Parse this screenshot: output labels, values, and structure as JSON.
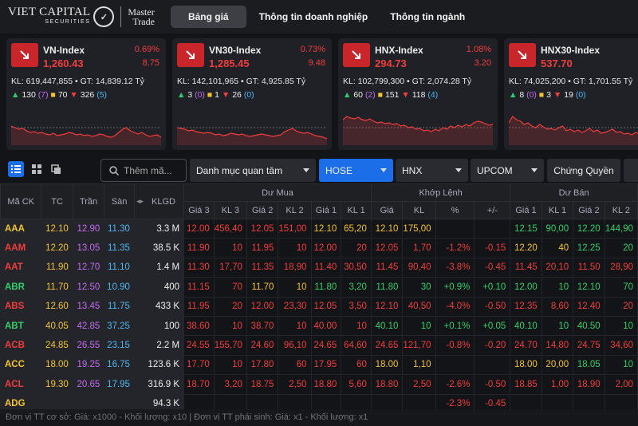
{
  "header": {
    "logo_main": "VIET CAPITAL",
    "logo_sub": "SECURITIES",
    "logo_line1": "Master",
    "logo_line2": "Trade",
    "tabs": [
      "Bảng giá",
      "Thông tin doanh nghiệp",
      "Thông tin ngành"
    ],
    "active_tab": 0
  },
  "indices": [
    {
      "name": "VN-Index",
      "value": "1,260.43",
      "pct": "0.69%",
      "chg": "8.75",
      "kl": "KL: 619,447,855 • GT: 14,839.12 Tỷ",
      "up": "130",
      "ceil": "(7)",
      "ref": "70",
      "down": "326",
      "floor": "(5)"
    },
    {
      "name": "VN30-Index",
      "value": "1,285.45",
      "pct": "0.73%",
      "chg": "9.48",
      "kl": "KL: 142,101,965 • GT: 4,925.85 Tỷ",
      "up": "3",
      "ceil": "(0)",
      "ref": "1",
      "down": "26",
      "floor": "(0)"
    },
    {
      "name": "HNX-Index",
      "value": "294.73",
      "pct": "1.08%",
      "chg": "3.20",
      "kl": "KL: 102,799,300 • GT: 2,074.28 Tỷ",
      "up": "60",
      "ceil": "(2)",
      "ref": "151",
      "down": "118",
      "floor": "(4)"
    },
    {
      "name": "HNX30-Index",
      "value": "537.70",
      "pct": "",
      "chg": "",
      "kl": "KL: 74,025,200 • GT: 1,701.55 Tỷ",
      "up": "8",
      "ceil": "(0)",
      "ref": "3",
      "down": "19",
      "floor": "(0)"
    }
  ],
  "toolbar": {
    "search_placeholder": "Thêm mã...",
    "watchlist": "Danh mục quan tâm",
    "hose": "HOSE",
    "hnx": "HNX",
    "upcom": "UPCOM",
    "cw": "Chứng Quyền"
  },
  "table": {
    "group_headers": {
      "buy": "Dư Mua",
      "match": "Khớp Lệnh",
      "sell": "Dư Bán"
    },
    "columns": [
      "Mã CK",
      "TC",
      "Trần",
      "Sàn",
      "KLGD",
      "Giá 3",
      "KL 3",
      "Giá 2",
      "KL 2",
      "Giá 1",
      "KL 1",
      "Giá",
      "KL",
      "%",
      "+/-",
      "Giá 1",
      "KL 1",
      "Giá 2",
      "KL 2"
    ],
    "rows": [
      [
        "AAA",
        "12.10",
        "12.90",
        "11.30",
        "3.3 M",
        "12.00",
        "456,40",
        "12.05",
        "151,00",
        "12.10",
        "65,20",
        "12.10",
        "175,00",
        "",
        "",
        "12.15",
        "90,00",
        "12.20",
        "144,90"
      ],
      [
        "AAM",
        "12.20",
        "13.05",
        "11.35",
        "38.5 K",
        "11.90",
        "10",
        "11.95",
        "10",
        "12.00",
        "20",
        "12.05",
        "1,70",
        "-1.2%",
        "-0.15",
        "12.20",
        "40",
        "12.25",
        "20"
      ],
      [
        "AAT",
        "11.90",
        "12.70",
        "11.10",
        "1.4 M",
        "11.30",
        "17,70",
        "11.35",
        "18,90",
        "11.40",
        "30,50",
        "11.45",
        "90,40",
        "-3.8%",
        "-0.45",
        "11.45",
        "20,10",
        "11.50",
        "28,90"
      ],
      [
        "ABR",
        "11.70",
        "12.50",
        "10.90",
        "400",
        "11.15",
        "70",
        "11.70",
        "10",
        "11.80",
        "3,20",
        "11.80",
        "30",
        "+0.9%",
        "+0.10",
        "12.00",
        "10",
        "12.10",
        "70"
      ],
      [
        "ABS",
        "12.60",
        "13.45",
        "11.75",
        "433 K",
        "11.95",
        "20",
        "12.00",
        "23,30",
        "12.05",
        "3,50",
        "12.10",
        "40,50",
        "-4.0%",
        "-0.50",
        "12.35",
        "8,60",
        "12.40",
        "20"
      ],
      [
        "ABT",
        "40.05",
        "42.85",
        "37.25",
        "100",
        "38.60",
        "10",
        "38.70",
        "10",
        "40.00",
        "10",
        "40.10",
        "10",
        "+0.1%",
        "+0.05",
        "40.10",
        "10",
        "40.50",
        "10"
      ],
      [
        "ACB",
        "24.85",
        "26.55",
        "23.15",
        "2.2 M",
        "24.55",
        "155,70",
        "24.60",
        "96,10",
        "24.65",
        "64,60",
        "24.65",
        "121,70",
        "-0.8%",
        "-0.20",
        "24.70",
        "14,80",
        "24.75",
        "34,60"
      ],
      [
        "ACC",
        "18.00",
        "19.25",
        "16.75",
        "123.6 K",
        "17.70",
        "10",
        "17.80",
        "60",
        "17.95",
        "60",
        "18.00",
        "1,10",
        "",
        "",
        "18.00",
        "20,00",
        "18.05",
        "10"
      ],
      [
        "ACL",
        "19.30",
        "20.65",
        "17.95",
        "316.9 K",
        "18.70",
        "3,20",
        "18.75",
        "2,50",
        "18.80",
        "5,60",
        "18.80",
        "2,50",
        "-2.6%",
        "-0.50",
        "18.85",
        "1,00",
        "18.90",
        "2,00"
      ],
      [
        "ADG",
        "",
        "",
        "",
        "94.3 K",
        "",
        "",
        "",
        "",
        "",
        "",
        "",
        "",
        "-2.3%",
        "-0.45",
        "",
        "",
        "",
        ""
      ]
    ]
  },
  "footer": "Đơn vị TT cơ sở: Giá: x1000 - Khối lượng: x10 | Đơn vị TT phái sinh: Giá: x1 - Khối lượng: x1",
  "colors": {
    "up": "#2fd06b",
    "down": "#f23d3d",
    "ref": "#f4c430",
    "ceil": "#c26cf0",
    "floor": "#4cb6f2"
  }
}
